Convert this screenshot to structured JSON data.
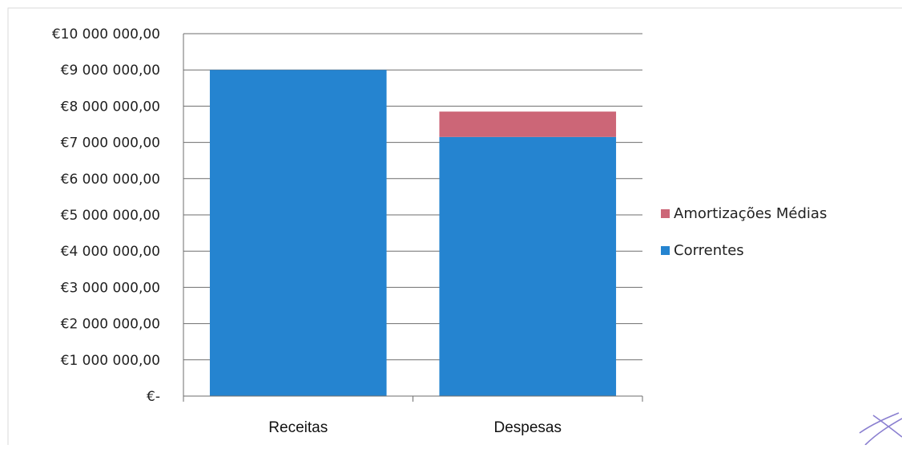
{
  "colors": {
    "correntes": "#2584d0",
    "amortizacoes": "#cc6677",
    "grid": "#6e6e6e",
    "border": "#d9d9d9"
  },
  "chart_data": {
    "type": "bar",
    "stacked": true,
    "categories": [
      "Receitas",
      "Despesas"
    ],
    "series": [
      {
        "name": "Correntes",
        "color": "#2584d0",
        "values": [
          9000000,
          7150000
        ]
      },
      {
        "name": "Amortizações Médias",
        "color": "#cc6677",
        "values": [
          0,
          700000
        ]
      }
    ],
    "ylim": [
      0,
      10000000
    ],
    "y_ticks": [
      {
        "value": 0,
        "label": "€-"
      },
      {
        "value": 1000000,
        "label": "€1 000 000,00"
      },
      {
        "value": 2000000,
        "label": "€2 000 000,00"
      },
      {
        "value": 3000000,
        "label": "€3 000 000,00"
      },
      {
        "value": 4000000,
        "label": "€4 000 000,00"
      },
      {
        "value": 5000000,
        "label": "€5 000 000,00"
      },
      {
        "value": 6000000,
        "label": "€6 000 000,00"
      },
      {
        "value": 7000000,
        "label": "€7 000 000,00"
      },
      {
        "value": 8000000,
        "label": "€8 000 000,00"
      },
      {
        "value": 9000000,
        "label": "€9 000 000,00"
      },
      {
        "value": 10000000,
        "label": "€10 000 000,00"
      }
    ],
    "legend": {
      "position": "right",
      "entries": [
        "Amortizações Médias",
        "Correntes"
      ]
    },
    "grid": true,
    "title": "",
    "xlabel": "",
    "ylabel": ""
  }
}
